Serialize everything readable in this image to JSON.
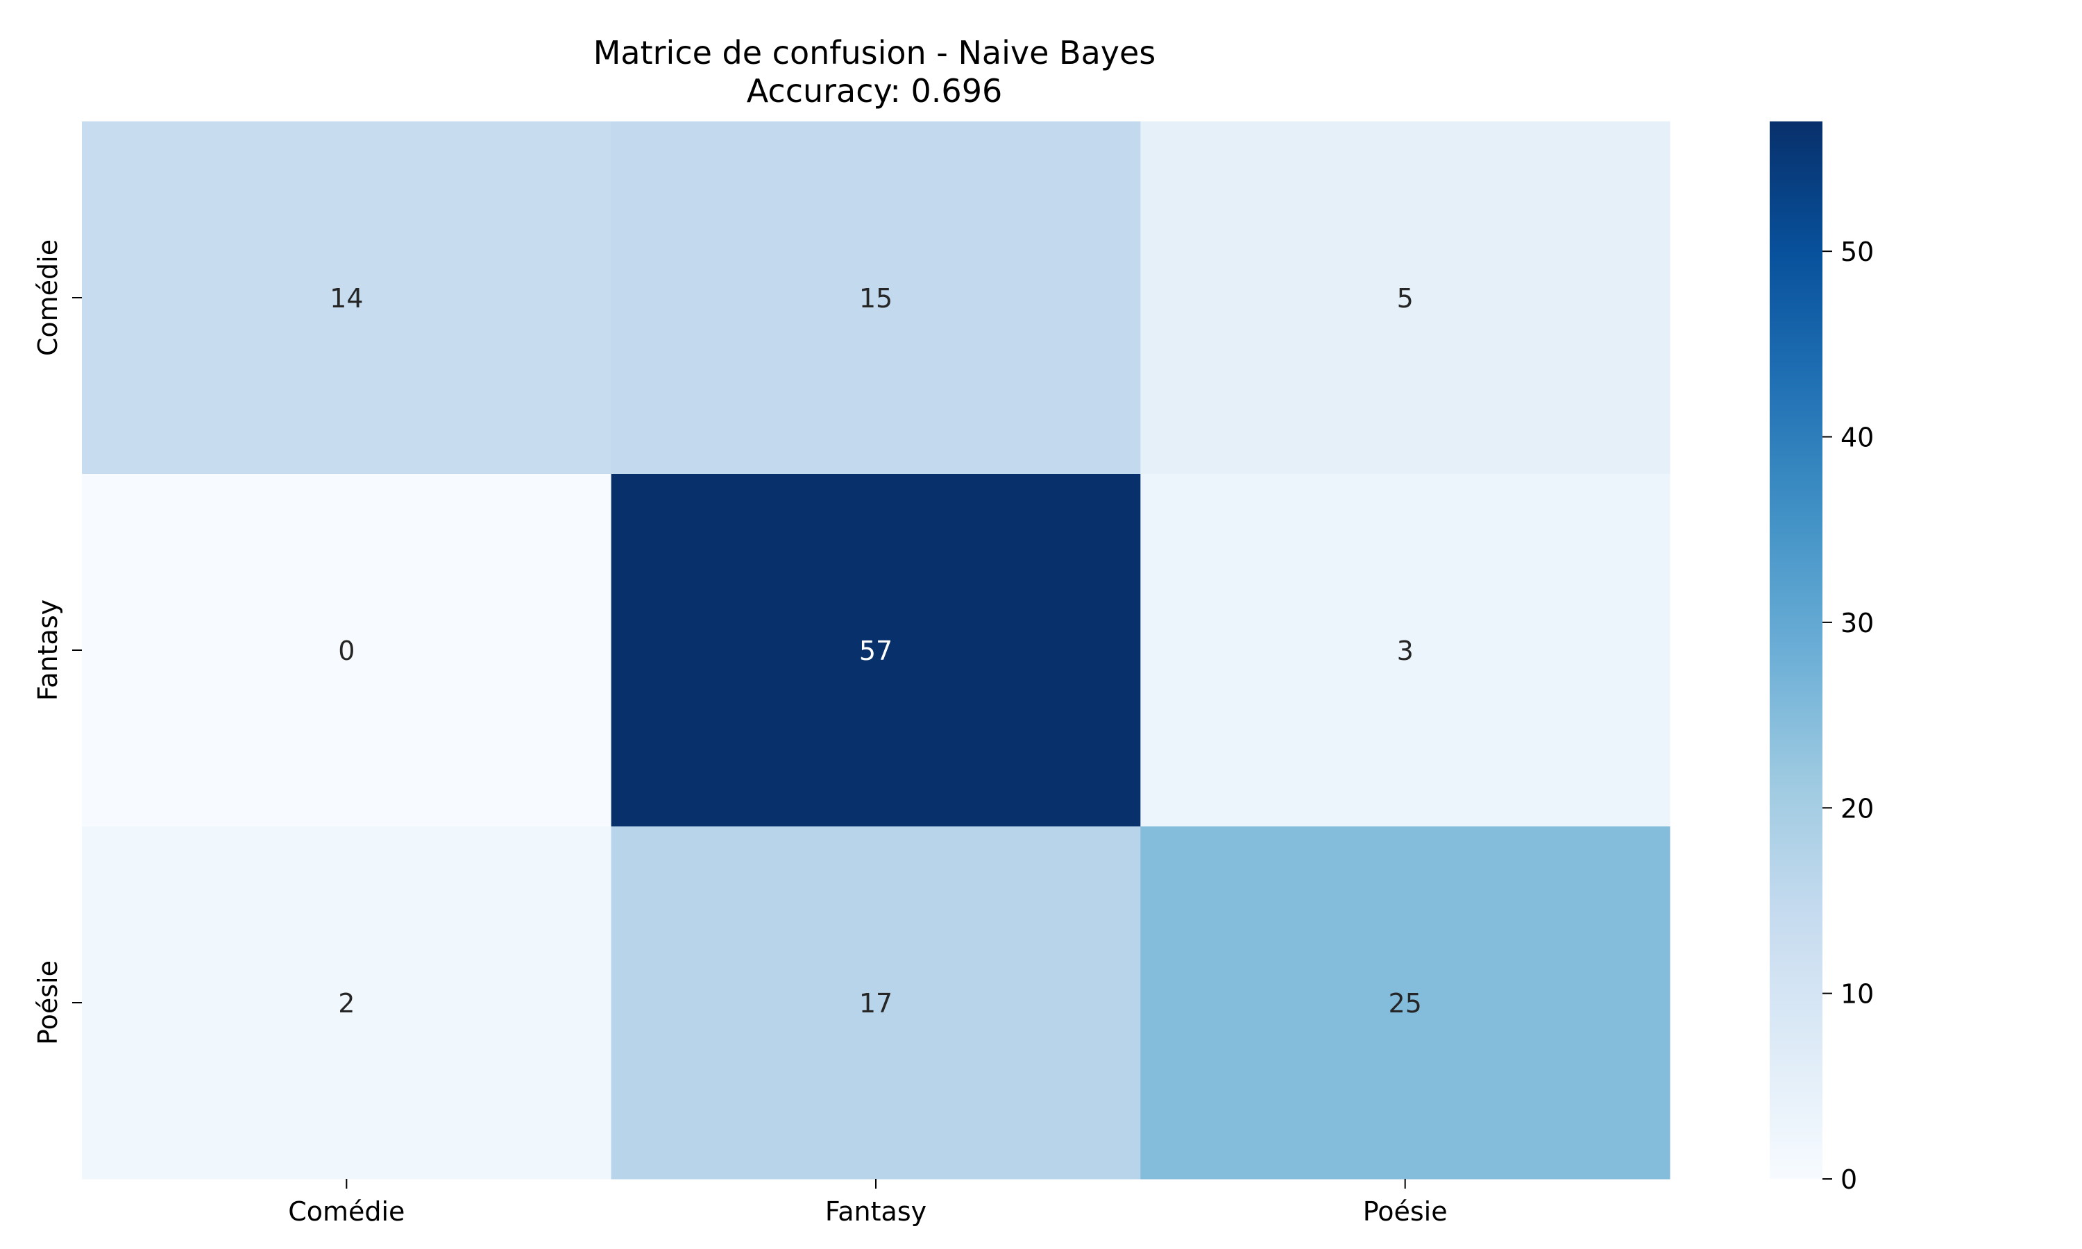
{
  "chart_data": {
    "type": "heatmap",
    "title": "Matrice de confusion - Naive Bayes",
    "subtitle": "Accuracy: 0.696",
    "xlabel": "",
    "ylabel": "",
    "x_categories": [
      "Comédie",
      "Fantasy",
      "Poésie"
    ],
    "y_categories": [
      "Comédie",
      "Fantasy",
      "Poésie"
    ],
    "values": [
      [
        14,
        15,
        5
      ],
      [
        0,
        57,
        3
      ],
      [
        2,
        17,
        25
      ]
    ],
    "colorbar": {
      "range": [
        0,
        57
      ],
      "ticks": [
        "0",
        "10",
        "20",
        "30",
        "40",
        "50"
      ],
      "colormap": "Blues"
    },
    "colors": {
      "text_dark": "#262626",
      "text_light": "#ffffff",
      "min_color": "#f7fbff",
      "max_color": "#08306b"
    }
  }
}
